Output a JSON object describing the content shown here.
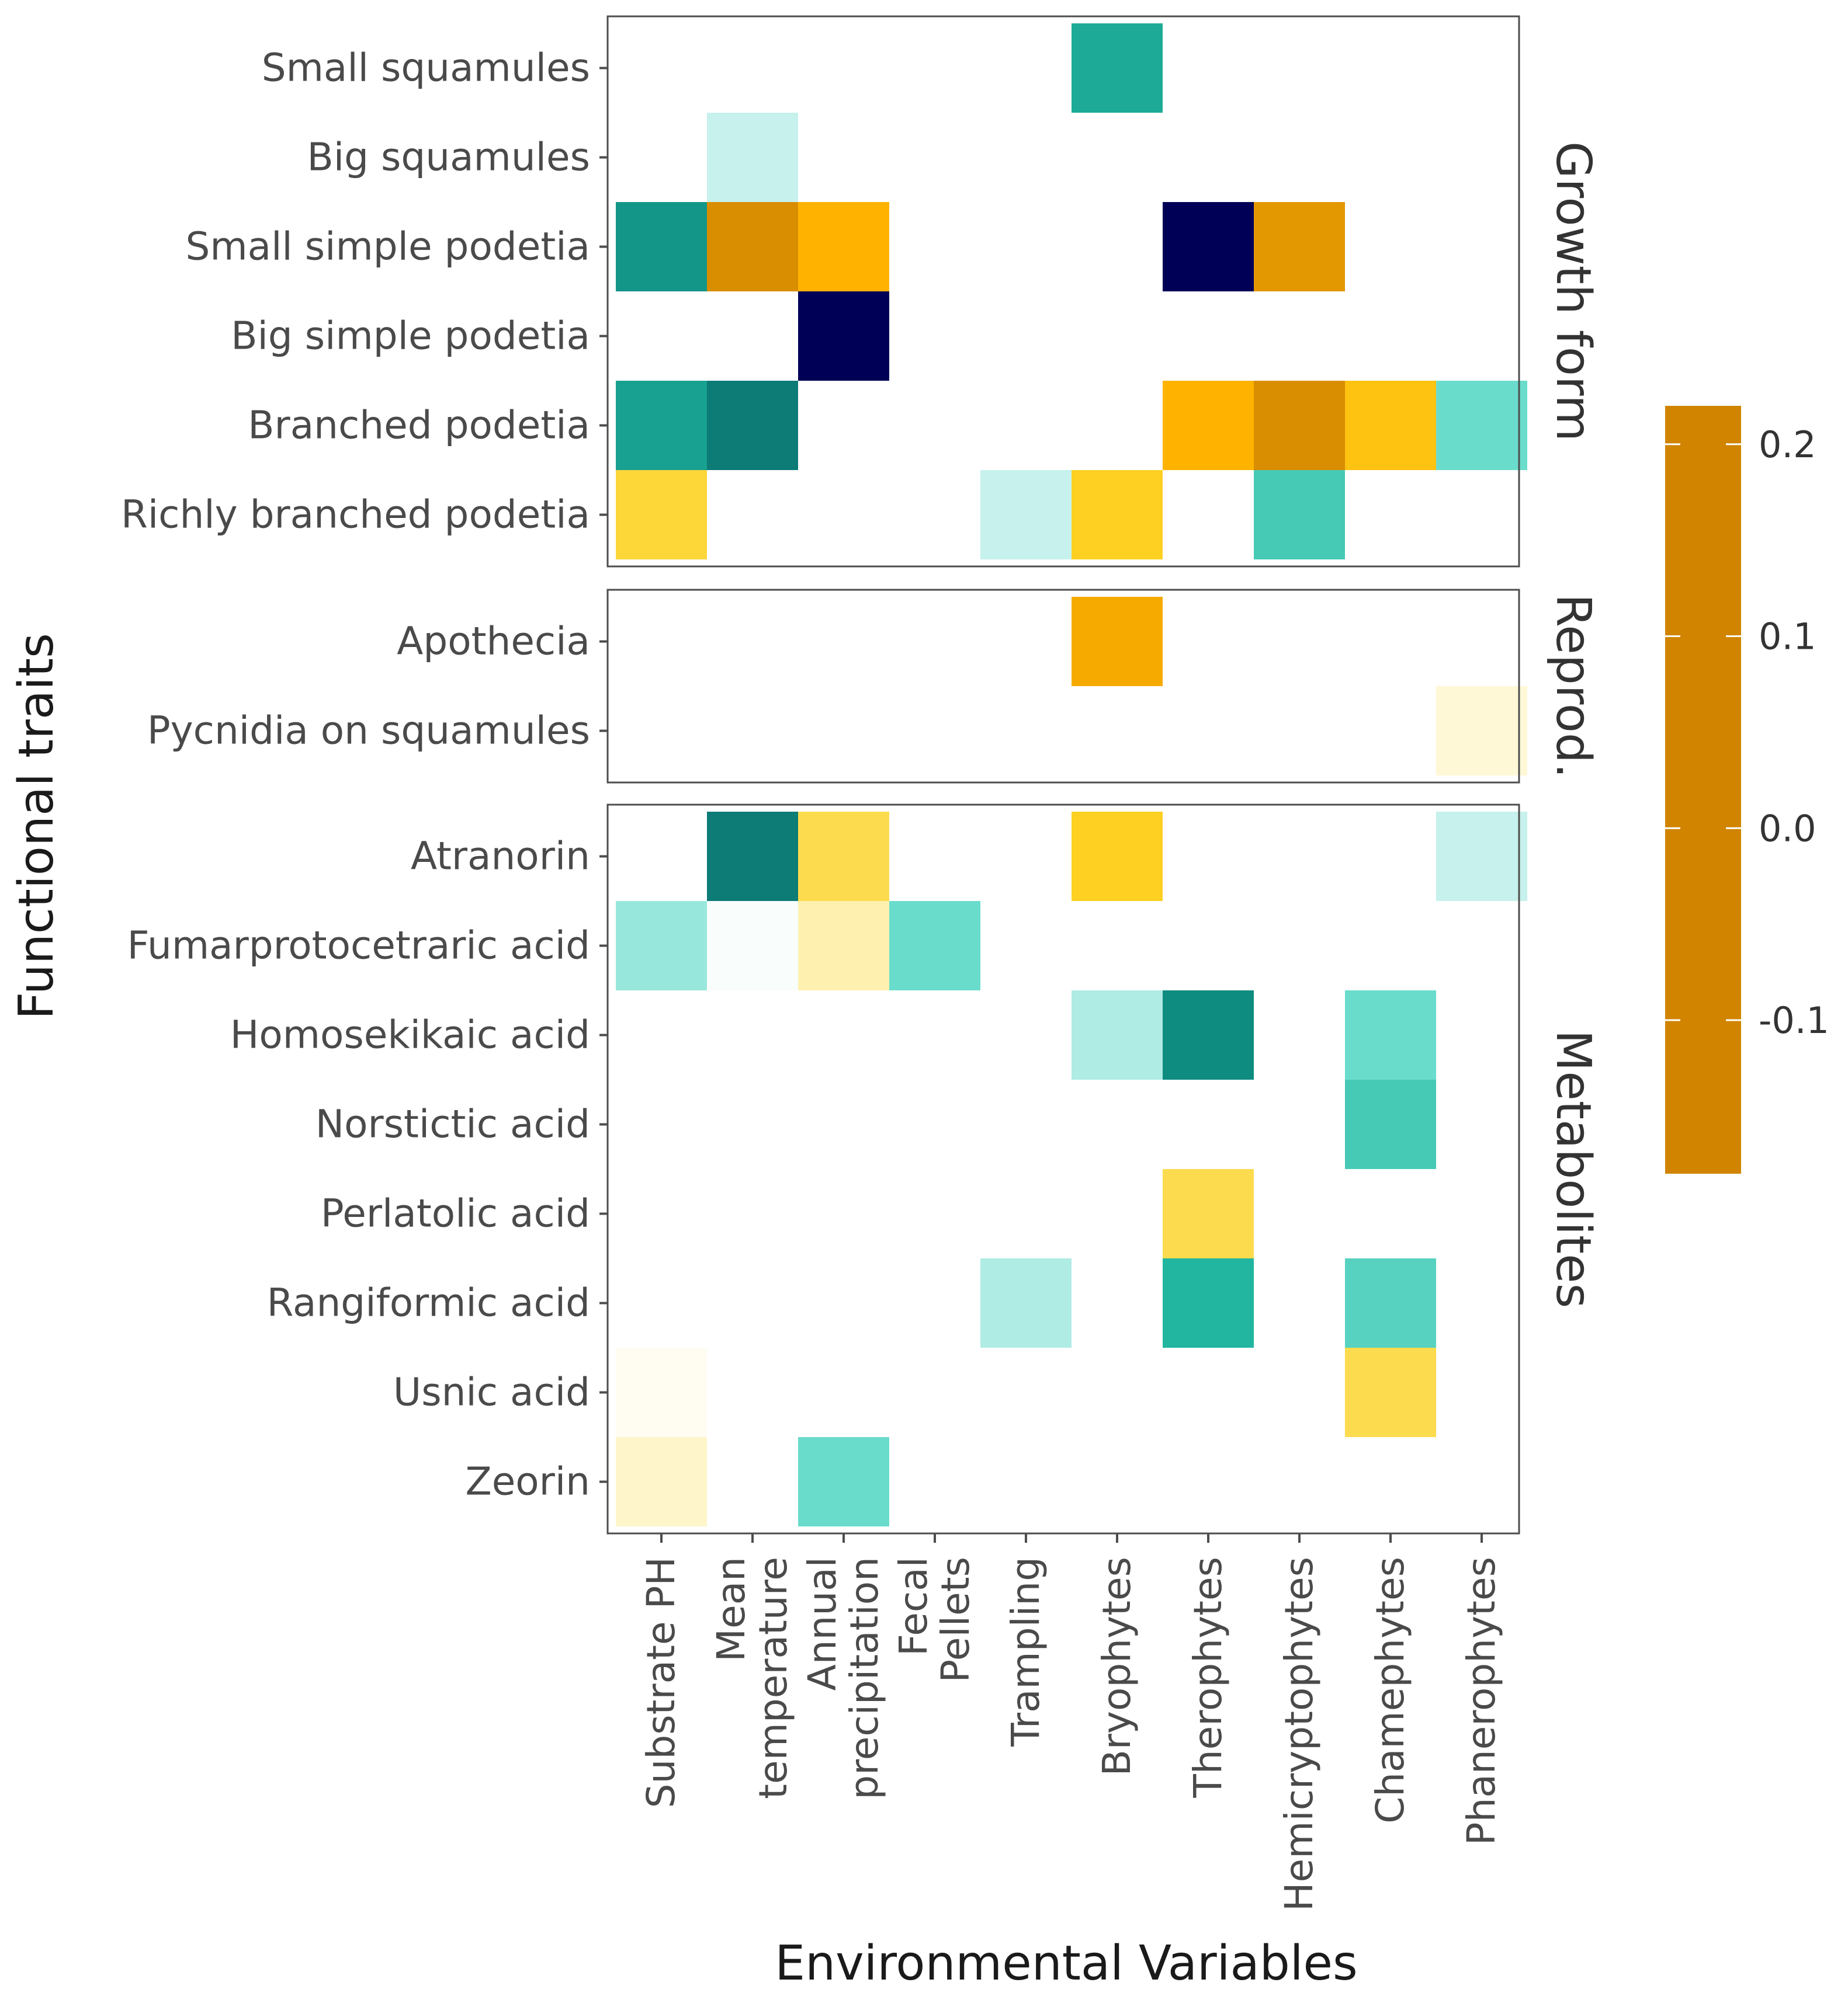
{
  "chart_data": {
    "type": "heatmap",
    "xlabel": "Environmental Variables",
    "ylabel": "Functional traits",
    "x_categories": [
      [
        "Substrate PH"
      ],
      [
        "Mean",
        "temperature"
      ],
      [
        "Annual",
        "precipitation"
      ],
      [
        "Fecal",
        "Pellets"
      ],
      [
        "Trampling"
      ],
      [
        "Bryophytes"
      ],
      [
        "Therophytes"
      ],
      [
        "Hemicryptophytes"
      ],
      [
        "Chamephytes"
      ],
      [
        "Phanerophytes"
      ]
    ],
    "facets": [
      {
        "name": "Growth form",
        "rows": [
          "Small squamules",
          "Big squamules",
          "Small simple podetia",
          "Big simple podetia",
          "Branched podetia",
          "Richly branched podetia"
        ],
        "values": [
          [
            null,
            null,
            null,
            null,
            null,
            0.12,
            null,
            null,
            null,
            null
          ],
          [
            null,
            0.03,
            null,
            null,
            null,
            null,
            null,
            null,
            null,
            null
          ],
          [
            0.14,
            -0.17,
            -0.13,
            null,
            null,
            null,
            0.22,
            -0.16,
            null,
            null
          ],
          [
            null,
            null,
            0.22,
            null,
            null,
            null,
            null,
            null,
            null,
            null
          ],
          [
            0.13,
            0.16,
            null,
            null,
            null,
            null,
            -0.13,
            -0.17,
            -0.11,
            0.07
          ],
          [
            -0.08,
            null,
            null,
            null,
            0.03,
            -0.09,
            null,
            0.09,
            null,
            null
          ]
        ]
      },
      {
        "name": "Reprod.",
        "rows": [
          "Apothecia",
          "Pycnidia on squamules"
        ],
        "values": [
          [
            null,
            null,
            null,
            null,
            null,
            -0.14,
            null,
            null,
            null,
            null
          ],
          [
            null,
            null,
            null,
            null,
            null,
            null,
            null,
            null,
            null,
            -0.015
          ]
        ]
      },
      {
        "name": "Metabolites",
        "rows": [
          "Atranorin",
          "Fumarprotocetraric acid",
          "Homosekikaic acid",
          "Norstictic acid",
          "Perlatolic acid",
          "Rangiformic acid",
          "Usnic acid",
          "Zeorin"
        ],
        "values": [
          [
            null,
            0.16,
            -0.07,
            null,
            null,
            -0.09,
            null,
            null,
            null,
            0.03
          ],
          [
            0.05,
            0.003,
            -0.03,
            0.07,
            null,
            null,
            null,
            null,
            null,
            null
          ],
          [
            null,
            null,
            null,
            null,
            null,
            0.04,
            0.15,
            null,
            0.07,
            null
          ],
          [
            null,
            null,
            null,
            null,
            null,
            null,
            null,
            null,
            0.09,
            null
          ],
          [
            null,
            null,
            null,
            null,
            null,
            null,
            -0.07,
            null,
            null,
            null
          ],
          [
            null,
            null,
            null,
            null,
            0.04,
            null,
            0.11,
            null,
            0.08,
            null
          ],
          [
            -0.005,
            null,
            null,
            null,
            null,
            null,
            null,
            null,
            -0.07,
            null
          ],
          [
            -0.02,
            null,
            0.07,
            null,
            null,
            null,
            null,
            null,
            null,
            null
          ]
        ]
      }
    ],
    "colorbar": {
      "range": [
        -0.18,
        0.22
      ],
      "ticks": [
        0.2,
        0.1,
        0.0,
        -0.1
      ],
      "tick_labels": [
        "0.2",
        "0.1",
        "0.0",
        "-0.1"
      ],
      "stops": [
        {
          "v": -0.18,
          "c": "#d08400"
        },
        {
          "v": -0.13,
          "c": "#ffb300"
        },
        {
          "v": -0.09,
          "c": "#fdd022"
        },
        {
          "v": -0.05,
          "c": "#fde67a"
        },
        {
          "v": 0.0,
          "c": "#ffffff"
        },
        {
          "v": 0.03,
          "c": "#c6f1ec"
        },
        {
          "v": 0.07,
          "c": "#6adccb"
        },
        {
          "v": 0.11,
          "c": "#22b59f"
        },
        {
          "v": 0.15,
          "c": "#0e8c80"
        },
        {
          "v": 0.18,
          "c": "#0a5a63"
        },
        {
          "v": 0.22,
          "c": "#000056"
        }
      ]
    }
  }
}
